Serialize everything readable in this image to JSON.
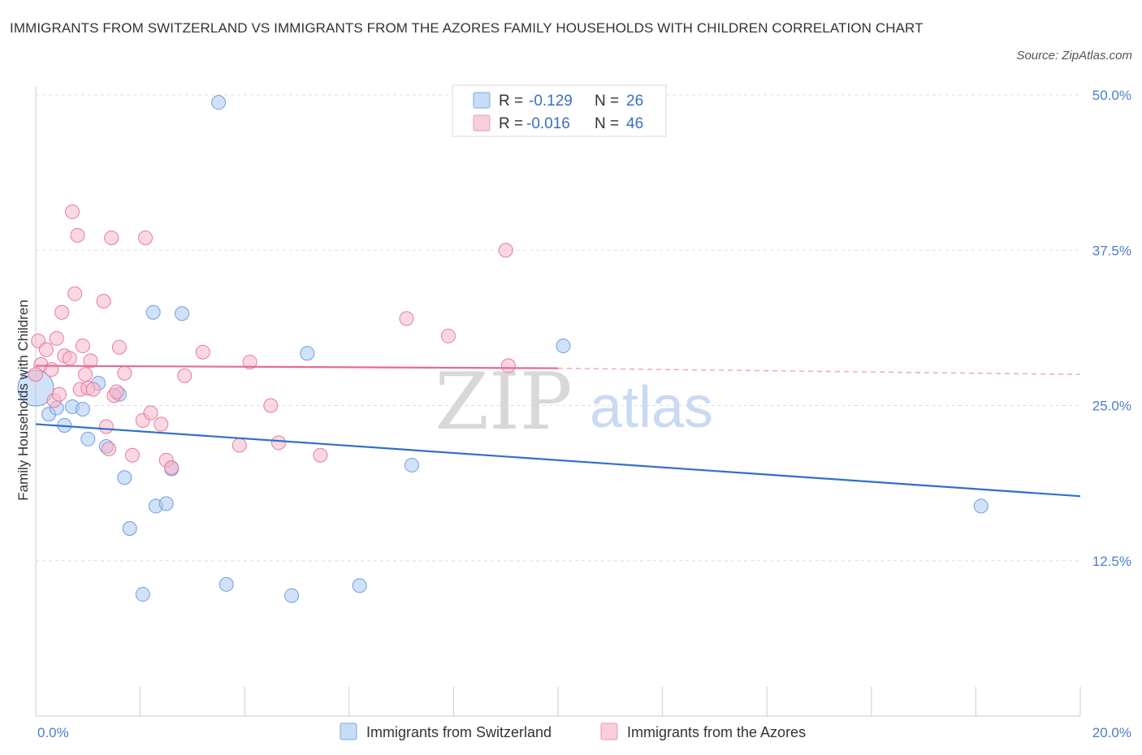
{
  "title": "IMMIGRANTS FROM SWITZERLAND VS IMMIGRANTS FROM THE AZORES FAMILY HOUSEHOLDS WITH CHILDREN CORRELATION CHART",
  "source": "Source: ZipAtlas.com",
  "watermark": {
    "zip": "ZIP",
    "atlas": "atlas"
  },
  "legend": {
    "rows": [
      {
        "r_label": "R = ",
        "r_value": "-0.129",
        "n_label": "N = ",
        "n_value": "26",
        "color": "#a9c8f2"
      },
      {
        "r_label": "R = ",
        "r_value": "-0.016",
        "n_label": "N = ",
        "n_value": "46",
        "color": "#f5b8cb"
      }
    ]
  },
  "bottom_legend": [
    {
      "label": "Immigrants from Switzerland",
      "color": "#a9c8f2"
    },
    {
      "label": "Immigrants from the Azores",
      "color": "#f5b8cb"
    }
  ],
  "chart_data": {
    "type": "scatter",
    "title": "IMMIGRANTS FROM SWITZERLAND VS IMMIGRANTS FROM THE AZORES FAMILY HOUSEHOLDS WITH CHILDREN CORRELATION CHART",
    "xlabel": "",
    "ylabel": "Family Households with Children",
    "xlim": [
      0,
      20
    ],
    "ylim": [
      0,
      50
    ],
    "x_tick_labels": [
      "0.0%",
      "20.0%"
    ],
    "y_ticks": [
      12.5,
      25.0,
      37.5,
      50.0
    ],
    "y_tick_labels": [
      "12.5%",
      "25.0%",
      "37.5%",
      "50.0%"
    ],
    "grid": true,
    "legend_position": "top-center",
    "series": [
      {
        "name": "Immigrants from Switzerland",
        "color": "#6fa0e0",
        "fill": "#a9c8f2",
        "trend": {
          "x": [
            0,
            20
          ],
          "y": [
            23.5,
            17.7
          ]
        },
        "points": [
          [
            0.0,
            26.4
          ],
          [
            0.25,
            24.3
          ],
          [
            0.4,
            24.8
          ],
          [
            0.55,
            23.4
          ],
          [
            0.7,
            24.9
          ],
          [
            0.9,
            24.7
          ],
          [
            1.0,
            22.3
          ],
          [
            1.2,
            26.8
          ],
          [
            1.35,
            21.7
          ],
          [
            1.6,
            25.9
          ],
          [
            1.7,
            19.2
          ],
          [
            1.8,
            15.1
          ],
          [
            2.05,
            9.8
          ],
          [
            2.25,
            32.5
          ],
          [
            2.3,
            16.9
          ],
          [
            2.5,
            17.1
          ],
          [
            2.6,
            19.9
          ],
          [
            2.8,
            32.4
          ],
          [
            3.5,
            49.4
          ],
          [
            3.65,
            10.6
          ],
          [
            4.9,
            9.7
          ],
          [
            5.2,
            29.2
          ],
          [
            6.2,
            10.5
          ],
          [
            7.2,
            20.2
          ],
          [
            10.1,
            29.8
          ],
          [
            18.1,
            16.9
          ]
        ]
      },
      {
        "name": "Immigrants from the Azores",
        "color": "#e87aa0",
        "fill": "#f5b8cb",
        "trend": {
          "x": [
            0,
            10
          ],
          "y": [
            28.2,
            28.0
          ]
        },
        "trend_dashed": {
          "x": [
            10,
            20
          ],
          "y": [
            28.0,
            27.5
          ]
        },
        "points": [
          [
            0.05,
            30.2
          ],
          [
            0.1,
            28.3
          ],
          [
            0.2,
            29.5
          ],
          [
            0.3,
            27.9
          ],
          [
            0.35,
            25.4
          ],
          [
            0.4,
            30.4
          ],
          [
            0.45,
            25.9
          ],
          [
            0.5,
            32.5
          ],
          [
            0.55,
            29.0
          ],
          [
            0.65,
            28.8
          ],
          [
            0.7,
            40.6
          ],
          [
            0.75,
            34.0
          ],
          [
            0.8,
            38.7
          ],
          [
            0.85,
            26.3
          ],
          [
            0.9,
            29.8
          ],
          [
            0.95,
            27.5
          ],
          [
            1.0,
            26.4
          ],
          [
            1.05,
            28.6
          ],
          [
            1.1,
            26.3
          ],
          [
            1.3,
            33.4
          ],
          [
            1.35,
            23.3
          ],
          [
            1.4,
            21.5
          ],
          [
            1.45,
            38.5
          ],
          [
            1.5,
            25.8
          ],
          [
            1.55,
            26.1
          ],
          [
            1.6,
            29.7
          ],
          [
            1.7,
            27.6
          ],
          [
            1.85,
            21.0
          ],
          [
            2.05,
            23.8
          ],
          [
            2.1,
            38.5
          ],
          [
            2.2,
            24.4
          ],
          [
            2.4,
            23.5
          ],
          [
            2.5,
            20.6
          ],
          [
            2.6,
            20.0
          ],
          [
            2.85,
            27.4
          ],
          [
            3.2,
            29.3
          ],
          [
            3.9,
            21.8
          ],
          [
            4.1,
            28.5
          ],
          [
            4.5,
            25.0
          ],
          [
            4.65,
            22.0
          ],
          [
            5.45,
            21.0
          ],
          [
            7.1,
            32.0
          ],
          [
            7.9,
            30.6
          ],
          [
            9.0,
            37.5
          ],
          [
            9.05,
            28.2
          ],
          [
            0.0,
            27.5
          ]
        ]
      }
    ]
  }
}
